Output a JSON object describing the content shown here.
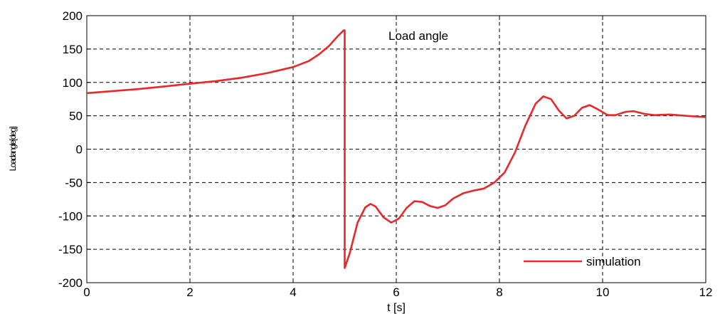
{
  "chart_data": {
    "type": "line",
    "title": "",
    "annotation": "Load angle",
    "xlabel": "t [s]",
    "ylabel": "Loadangle[deg]",
    "xlim": [
      0,
      12
    ],
    "ylim": [
      -200,
      200
    ],
    "xticks": [
      "0",
      "2",
      "4",
      "6",
      "8",
      "10",
      "12"
    ],
    "yticks": [
      "200",
      "150",
      "100",
      "50",
      "0",
      "-50",
      "-100",
      "-150",
      "-200"
    ],
    "grid": true,
    "legend_position": "bottom-right",
    "series": [
      {
        "name": "simulation",
        "color": "#e8282b",
        "points": [
          [
            0,
            84
          ],
          [
            0.5,
            87
          ],
          [
            1.0,
            90
          ],
          [
            1.5,
            94
          ],
          [
            2.0,
            98
          ],
          [
            2.5,
            102
          ],
          [
            3.0,
            107
          ],
          [
            3.5,
            114
          ],
          [
            4.0,
            123
          ],
          [
            4.3,
            132
          ],
          [
            4.5,
            142
          ],
          [
            4.7,
            155
          ],
          [
            4.85,
            168
          ],
          [
            4.98,
            178
          ],
          [
            5.0,
            178
          ],
          [
            5.0,
            -178
          ],
          [
            5.1,
            -155
          ],
          [
            5.25,
            -110
          ],
          [
            5.4,
            -87
          ],
          [
            5.5,
            -82
          ],
          [
            5.6,
            -86
          ],
          [
            5.75,
            -102
          ],
          [
            5.9,
            -110
          ],
          [
            6.05,
            -104
          ],
          [
            6.2,
            -88
          ],
          [
            6.35,
            -78
          ],
          [
            6.5,
            -79
          ],
          [
            6.65,
            -85
          ],
          [
            6.8,
            -88
          ],
          [
            6.95,
            -84
          ],
          [
            7.1,
            -74
          ],
          [
            7.3,
            -66
          ],
          [
            7.5,
            -62
          ],
          [
            7.7,
            -59
          ],
          [
            7.9,
            -50
          ],
          [
            8.1,
            -35
          ],
          [
            8.3,
            -5
          ],
          [
            8.5,
            35
          ],
          [
            8.7,
            68
          ],
          [
            8.85,
            79
          ],
          [
            9.0,
            75
          ],
          [
            9.15,
            58
          ],
          [
            9.3,
            46
          ],
          [
            9.45,
            50
          ],
          [
            9.6,
            62
          ],
          [
            9.75,
            66
          ],
          [
            9.9,
            60
          ],
          [
            10.1,
            51
          ],
          [
            10.25,
            51
          ],
          [
            10.45,
            56
          ],
          [
            10.6,
            57
          ],
          [
            10.8,
            53
          ],
          [
            11.0,
            51
          ],
          [
            11.3,
            52
          ],
          [
            11.6,
            50
          ],
          [
            12.0,
            48
          ]
        ]
      }
    ]
  }
}
